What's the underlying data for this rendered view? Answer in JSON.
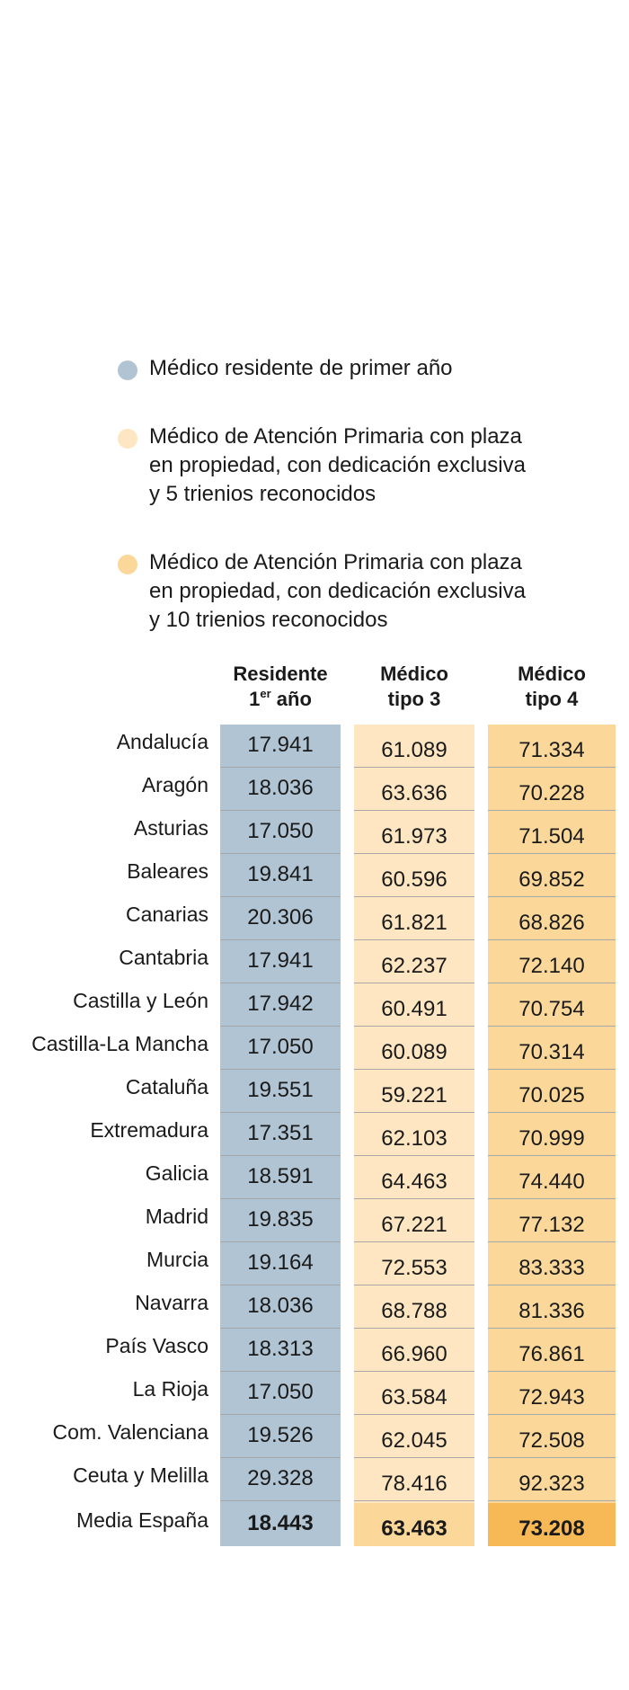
{
  "legend": [
    {
      "color": "#b0c4d3",
      "lines": [
        "Médico residente de primer año"
      ]
    },
    {
      "color": "#fde6c1",
      "lines": [
        "Médico de Atención Primaria con plaza",
        "en propiedad, con dedicación exclusiva",
        "y 5 trienios reconocidos"
      ]
    },
    {
      "color": "#fbd89a",
      "lines": [
        "Médico de Atención Primaria con plaza",
        "en propiedad, con dedicación exclusiva",
        "y 10 trienios reconocidos"
      ]
    }
  ],
  "chart_data": {
    "type": "table",
    "columns": [
      {
        "line1": "Residente",
        "line2_base": "1",
        "line2_sup": "er",
        "line2_rest": " año"
      },
      {
        "line1": "Médico",
        "line2": "tipo 3"
      },
      {
        "line1": "Médico",
        "line2": "tipo 4"
      }
    ],
    "rows": [
      {
        "region": "Andalucía",
        "values": [
          "17.941",
          "61.089",
          "71.334"
        ]
      },
      {
        "region": "Aragón",
        "values": [
          "18.036",
          "63.636",
          "70.228"
        ]
      },
      {
        "region": "Asturias",
        "values": [
          "17.050",
          "61.973",
          "71.504"
        ]
      },
      {
        "region": "Baleares",
        "values": [
          "19.841",
          "60.596",
          "69.852"
        ]
      },
      {
        "region": "Canarias",
        "values": [
          "20.306",
          "61.821",
          "68.826"
        ]
      },
      {
        "region": "Cantabria",
        "values": [
          "17.941",
          "62.237",
          "72.140"
        ]
      },
      {
        "region": "Castilla y León",
        "values": [
          "17.942",
          "60.491",
          "70.754"
        ]
      },
      {
        "region": "Castilla-La Mancha",
        "values": [
          "17.050",
          "60.089",
          "70.314"
        ]
      },
      {
        "region": "Cataluña",
        "values": [
          "19.551",
          "59.221",
          "70.025"
        ]
      },
      {
        "region": "Extremadura",
        "values": [
          "17.351",
          "62.103",
          "70.999"
        ]
      },
      {
        "region": "Galicia",
        "values": [
          "18.591",
          "64.463",
          "74.440"
        ]
      },
      {
        "region": "Madrid",
        "values": [
          "19.835",
          "67.221",
          "77.132"
        ]
      },
      {
        "region": "Murcia",
        "values": [
          "19.164",
          "72.553",
          "83.333"
        ]
      },
      {
        "region": "Navarra",
        "values": [
          "18.036",
          "68.788",
          "81.336"
        ]
      },
      {
        "region": "País Vasco",
        "values": [
          "18.313",
          "66.960",
          "76.861"
        ]
      },
      {
        "region": "La Rioja",
        "values": [
          "17.050",
          "63.584",
          "72.943"
        ]
      },
      {
        "region": "Com. Valenciana",
        "values": [
          "19.526",
          "62.045",
          "72.508"
        ]
      },
      {
        "region": "Ceuta y Melilla",
        "values": [
          "29.328",
          "78.416",
          "92.323"
        ]
      }
    ],
    "average": {
      "region": "Media España",
      "values": [
        "18.443",
        "63.463",
        "73.208"
      ]
    }
  }
}
